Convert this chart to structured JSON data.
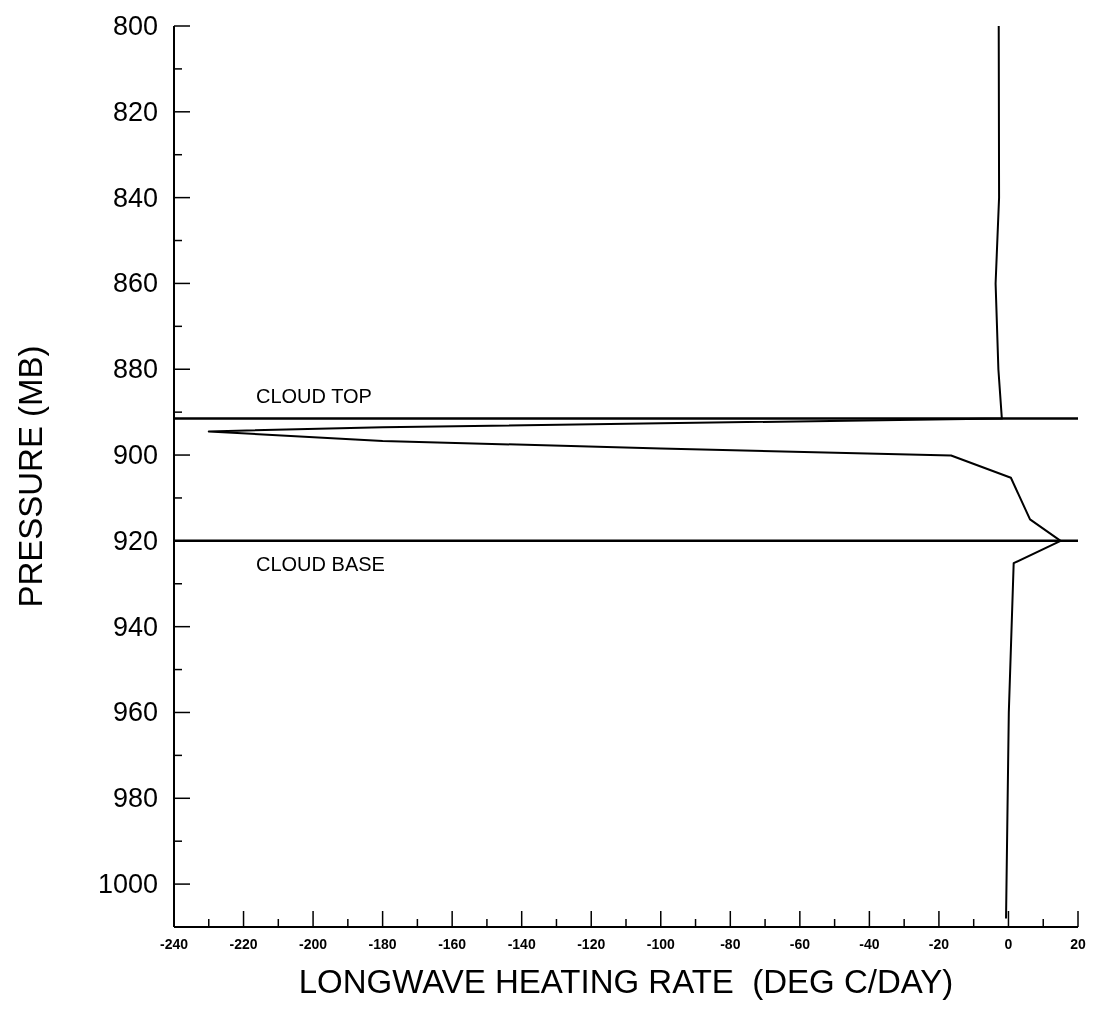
{
  "chart_data": {
    "type": "line",
    "xlabel": "LONGWAVE HEATING RATE  (DEG C/DAY)",
    "ylabel": "PRESSURE  (MB)",
    "x": [
      -2.8,
      -2.7,
      -3.7,
      -2.9,
      -1.9,
      -100,
      -180,
      -230,
      -180,
      -100,
      -16.5,
      0.7,
      6.2,
      15,
      1.5,
      0.1,
      -0.7
    ],
    "series": [
      {
        "color": "#000000",
        "values": [
          800,
          840,
          860,
          880,
          891.5,
          892.6,
          893.5,
          894.5,
          896.7,
          898.5,
          900.1,
          905.3,
          915,
          920,
          925.2,
          960,
          1008
        ]
      }
    ],
    "xlim": [
      -240,
      20
    ],
    "xticks": [
      -240,
      {
        "value": -230,
        "label": null
      },
      -220,
      {
        "value": -210,
        "label": null
      },
      -200,
      {
        "value": -190,
        "label": null
      },
      -180,
      {
        "value": -170,
        "label": null
      },
      -160,
      {
        "value": -150,
        "label": null
      },
      -140,
      {
        "value": -130,
        "label": null
      },
      -120,
      {
        "value": -110,
        "label": null
      },
      -100,
      {
        "value": -90,
        "label": null
      },
      -80,
      {
        "value": -70,
        "label": null
      },
      -60,
      {
        "value": -50,
        "label": null
      },
      -40,
      {
        "value": -30,
        "label": null
      },
      -20,
      {
        "value": -10,
        "label": null
      },
      0,
      {
        "value": 10,
        "label": null
      },
      20
    ],
    "ylim": [
      1010,
      800
    ],
    "yticks": [
      800,
      {
        "value": 810,
        "label": null
      },
      820,
      {
        "value": 830,
        "label": null
      },
      840,
      {
        "value": 850,
        "label": null
      },
      860,
      {
        "value": 870,
        "label": null
      },
      880,
      {
        "value": 890,
        "label": null
      },
      900,
      {
        "value": 910,
        "label": null
      },
      920,
      {
        "value": 930,
        "label": null
      },
      940,
      {
        "value": 950,
        "label": null
      },
      960,
      {
        "value": 970,
        "label": null
      },
      980,
      {
        "value": 990,
        "label": null
      },
      1000
    ],
    "ref_lines": [
      {
        "axis": "y",
        "value": 891.5,
        "label": "CLOUD TOP"
      },
      {
        "axis": "y",
        "value": 920,
        "label": "CLOUD BASE"
      }
    ],
    "grid": false,
    "legend": false,
    "marker": "none",
    "line_style": "solid"
  }
}
